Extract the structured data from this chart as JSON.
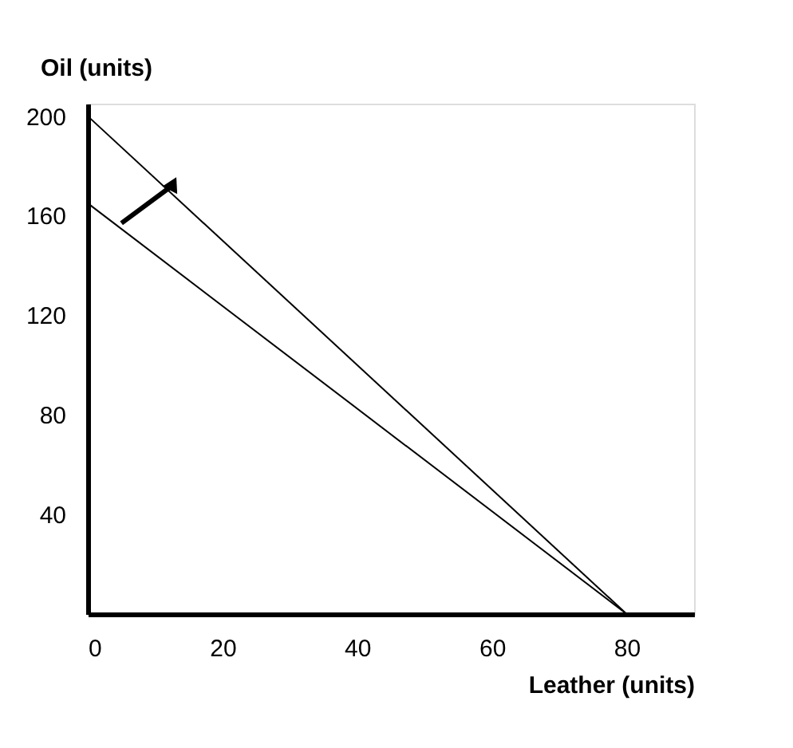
{
  "chart_data": {
    "type": "line",
    "xlabel": "Leather (units)",
    "ylabel": "Oil (units)",
    "x": [
      0,
      80
    ],
    "series": [
      {
        "color": "#000000",
        "values": [
          200,
          0
        ]
      },
      {
        "color": "#000000",
        "values": [
          165,
          0
        ]
      }
    ],
    "xlim": [
      0,
      90
    ],
    "ylim": [
      0,
      205
    ],
    "xticks": [
      0,
      20,
      40,
      60,
      80
    ],
    "yticks": [
      40,
      80,
      120,
      160,
      200
    ],
    "grid": false,
    "legend": false,
    "marker": "none",
    "line_style": "solid"
  }
}
